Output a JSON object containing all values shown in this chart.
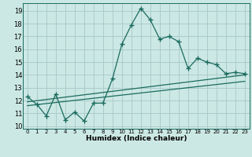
{
  "title": "",
  "xlabel": "Humidex (Indice chaleur)",
  "bg_color": "#cce8e4",
  "grid_color": "#aacccc",
  "line_color": "#1a6b5e",
  "xlim": [
    -0.5,
    23.5
  ],
  "ylim": [
    9.8,
    19.6
  ],
  "xticks": [
    0,
    1,
    2,
    3,
    4,
    5,
    6,
    7,
    8,
    9,
    10,
    11,
    12,
    13,
    14,
    15,
    16,
    17,
    18,
    19,
    20,
    21,
    22,
    23
  ],
  "yticks": [
    10,
    11,
    12,
    13,
    14,
    15,
    16,
    17,
    18,
    19
  ],
  "main_line_x": [
    0,
    1,
    2,
    3,
    4,
    5,
    6,
    7,
    8,
    9,
    10,
    11,
    12,
    13,
    14,
    15,
    16,
    17,
    18,
    19,
    20,
    21,
    22,
    23
  ],
  "main_line_y": [
    12.3,
    11.7,
    10.8,
    12.5,
    10.5,
    11.1,
    10.4,
    11.8,
    11.8,
    13.7,
    16.4,
    17.9,
    19.2,
    18.3,
    16.8,
    17.0,
    16.6,
    14.5,
    15.3,
    15.0,
    14.8,
    14.1,
    14.2,
    14.1
  ],
  "trend1_x": [
    0,
    23
  ],
  "trend1_y": [
    11.9,
    14.0
  ],
  "trend2_x": [
    0,
    23
  ],
  "trend2_y": [
    11.6,
    13.5
  ]
}
